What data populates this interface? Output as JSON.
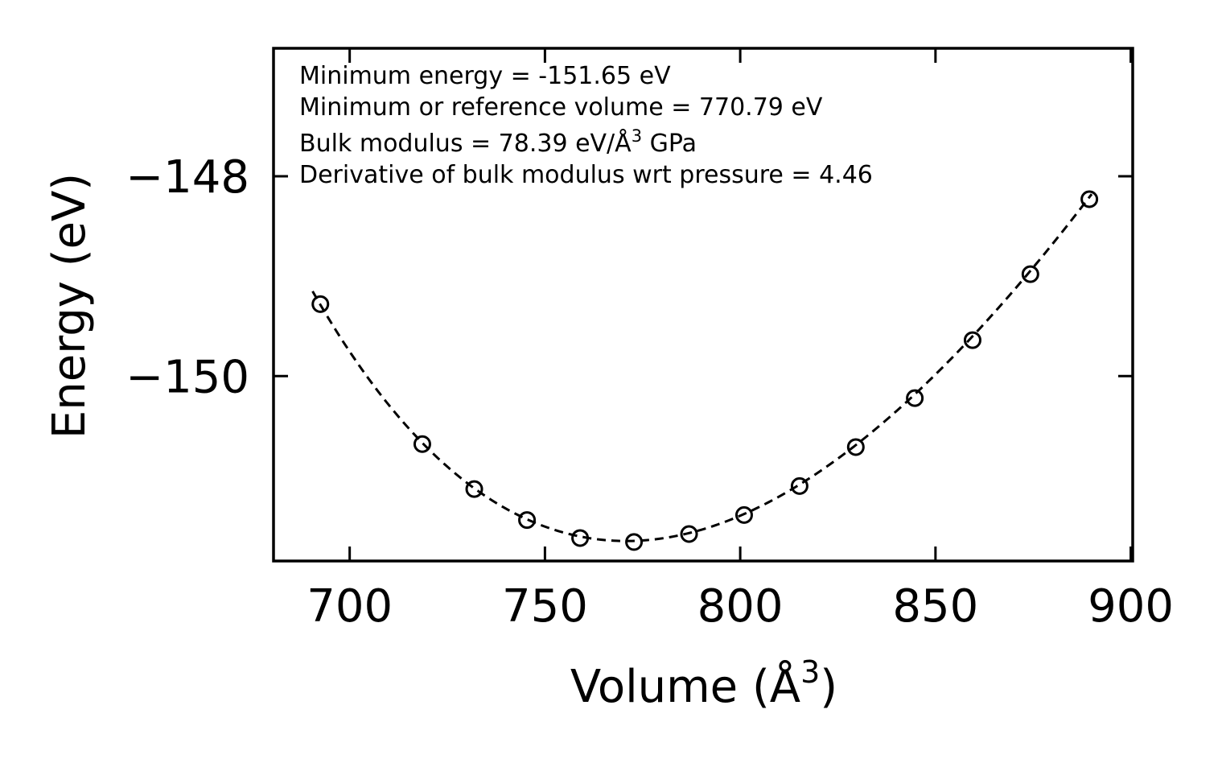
{
  "chart_data": {
    "type": "scatter",
    "xlabel_main": "Volume (Å",
    "xlabel_sup": "3",
    "xlabel_end": ")",
    "ylabel": "Energy (eV)",
    "xlim": [
      680.5,
      900.5
    ],
    "ylim": [
      -151.85,
      -146.72
    ],
    "x_ticks": [
      700,
      750,
      800,
      850,
      900
    ],
    "x_tick_labels": [
      "700",
      "750",
      "800",
      "850",
      "900"
    ],
    "y_ticks": [
      -148,
      -150
    ],
    "y_tick_labels": [
      "−148",
      "−150"
    ],
    "annotations": [
      {
        "text": "Minimum energy = -151.65 eV"
      },
      {
        "text": "Minimum or reference volume = 770.79 eV"
      },
      {
        "text": "Bulk modulus = 78.39 eV/Å",
        "sup": "3",
        "suffix": " GPa"
      },
      {
        "text": "Derivative of bulk modulus wrt pressure = 4.46"
      }
    ],
    "series": [
      {
        "name": "data",
        "marker": "open-circle",
        "x": [
          692.5,
          718.6,
          731.9,
          745.4,
          759.0,
          772.8,
          786.9,
          801.0,
          815.2,
          829.6,
          844.7,
          859.5,
          874.3,
          889.4
        ],
        "y": [
          -149.28,
          -150.68,
          -151.13,
          -151.44,
          -151.62,
          -151.66,
          -151.58,
          -151.39,
          -151.1,
          -150.71,
          -150.22,
          -149.64,
          -148.98,
          -148.23
        ]
      },
      {
        "name": "fit",
        "style": "dashed-line",
        "E0": -151.65,
        "V0": 770.79,
        "B0_GPa": 78.39,
        "Bp": 4.46,
        "x_range": [
          690.5,
          890.0
        ]
      }
    ]
  }
}
